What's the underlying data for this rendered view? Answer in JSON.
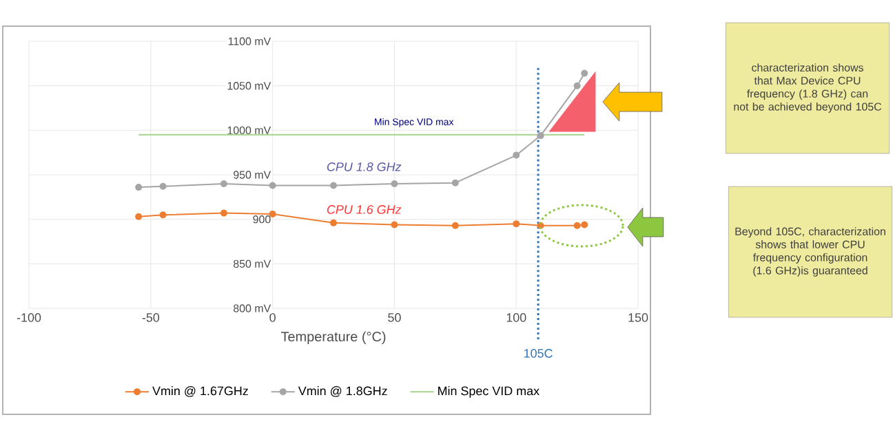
{
  "chart_data": {
    "type": "line",
    "xlabel": "Temperature (°C)",
    "xlim": [
      -100,
      150
    ],
    "xticks": [
      -100,
      -50,
      0,
      50,
      100,
      150
    ],
    "ylim": [
      800,
      1100
    ],
    "yticks": [
      {
        "value": 800,
        "label": "800 mV"
      },
      {
        "value": 850,
        "label": "850 mV"
      },
      900,
      {
        "value": 950,
        "label": "950 mV"
      },
      {
        "value": 1000,
        "label": "1000 mV"
      },
      {
        "value": 1050,
        "label": "1050 mV"
      },
      {
        "value": 1100,
        "label": "1100 mV"
      }
    ],
    "grid": true,
    "legend": "bottom",
    "marker": "circle",
    "line_style": "solid",
    "series": [
      {
        "name": "Vmin @ 1.67GHz",
        "color": "#ed7d31",
        "x": [
          -55,
          -45,
          -20,
          0,
          25,
          50,
          75,
          100,
          110,
          125,
          128
        ],
        "values": [
          903,
          905,
          907,
          906,
          896,
          894,
          893,
          895,
          893,
          893,
          894
        ]
      },
      {
        "name": "Vmin @ 1.8GHz",
        "color": "#a5a5a5",
        "x": [
          -55,
          -45,
          -20,
          0,
          25,
          50,
          75,
          100,
          110,
          125,
          128
        ],
        "values": [
          936,
          937,
          940,
          938,
          938,
          940,
          941,
          972,
          994,
          1050,
          1064
        ]
      },
      {
        "name": "Min Spec VID max",
        "color": "#a9d18e",
        "x": [
          -55,
          128
        ],
        "values": [
          995,
          995
        ],
        "marker": "none"
      }
    ],
    "ref_lines": [
      {
        "axis": "x",
        "value": 109,
        "label": "105C",
        "color": "#2e75b6",
        "line_style": "dotted"
      }
    ],
    "annotations": [
      {
        "text": "Min Spec VID max",
        "x": 58,
        "y": 995
      },
      "CPU 1.8 GHz",
      "CPU 1.6 GHz",
      "characterization shows that Max Device CPU frequency (1.8 GHz) can not be achieved beyond 105C",
      "Beyond 105C, characterization shows that lower CPU frequency configuration (1.6 GHz)is guaranteed"
    ]
  }
}
